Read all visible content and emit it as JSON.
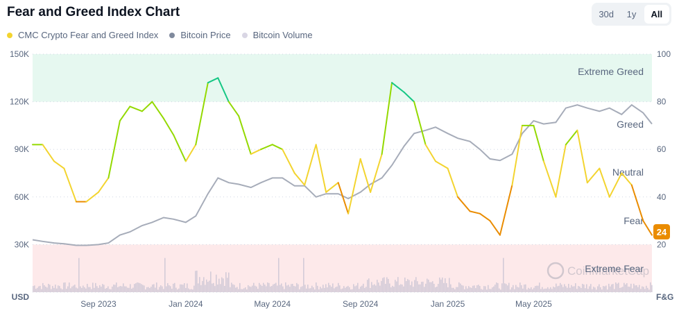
{
  "title": "Fear and Greed Index Chart",
  "legend": [
    {
      "label": "CMC Crypto Fear and Greed Index",
      "color": "#f3d42f"
    },
    {
      "label": "Bitcoin Price",
      "color": "#808a9d"
    },
    {
      "label": "Bitcoin Volume",
      "color": "#d9d6e4"
    }
  ],
  "range_buttons": [
    {
      "label": "30d",
      "active": false
    },
    {
      "label": "1y",
      "active": false
    },
    {
      "label": "All",
      "active": true
    }
  ],
  "watermark": "CoinMarketCap",
  "current_badge": "24",
  "chart_data": {
    "type": "line",
    "x_ticks": [
      "Sep 2023",
      "Jan 2024",
      "May 2024",
      "Sep 2024",
      "Jan 2025",
      "May 2025"
    ],
    "left_axis": {
      "label": "USD",
      "ticks": [
        "150K",
        "120K",
        "90K",
        "60K",
        "30K"
      ],
      "ylim": [
        0,
        150000
      ]
    },
    "right_axis": {
      "label": "F&G",
      "ticks": [
        "100",
        "80",
        "60",
        "40",
        "20"
      ],
      "ylim": [
        0,
        100
      ]
    },
    "zones": [
      "Extreme Greed",
      "Greed",
      "Neutral",
      "Fear",
      "Extreme Fear"
    ],
    "colors": {
      "extreme_greed": "#16c784",
      "greed": "#93d900",
      "neutral": "#f3d42f",
      "fear": "#ea8c00",
      "extreme_fear": "#ea3943",
      "price": "#a6acb9",
      "volume": "#d3cbd8",
      "greed_band": "#e6f8f0",
      "fear_band": "#fde9ea"
    },
    "grid": true,
    "x": [
      "2023-06-01",
      "2023-06-15",
      "2023-07-01",
      "2023-07-15",
      "2023-08-01",
      "2023-08-15",
      "2023-09-01",
      "2023-09-15",
      "2023-10-01",
      "2023-10-15",
      "2023-11-01",
      "2023-11-15",
      "2023-12-01",
      "2023-12-15",
      "2024-01-01",
      "2024-01-15",
      "2024-02-01",
      "2024-02-15",
      "2024-03-01",
      "2024-03-15",
      "2024-04-01",
      "2024-04-15",
      "2024-05-01",
      "2024-05-15",
      "2024-06-01",
      "2024-06-15",
      "2024-07-01",
      "2024-07-15",
      "2024-08-01",
      "2024-08-15",
      "2024-09-01",
      "2024-09-15",
      "2024-10-01",
      "2024-10-15",
      "2024-11-01",
      "2024-11-15",
      "2024-12-01",
      "2024-12-15",
      "2025-01-01",
      "2025-01-15",
      "2025-02-01",
      "2025-02-15",
      "2025-03-01",
      "2025-03-15",
      "2025-04-01",
      "2025-04-15",
      "2025-05-01",
      "2025-05-15",
      "2025-06-01",
      "2025-06-15",
      "2025-07-01",
      "2025-07-15",
      "2025-08-01",
      "2025-08-15",
      "2025-09-01",
      "2025-09-15",
      "2025-10-01",
      "2025-10-14"
    ],
    "series": [
      {
        "name": "CMC Crypto Fear and Greed Index",
        "axis": "right",
        "values": [
          62,
          62,
          55,
          52,
          38,
          38,
          42,
          48,
          72,
          78,
          76,
          80,
          73,
          66,
          55,
          62,
          88,
          90,
          80,
          74,
          58,
          60,
          62,
          60,
          50,
          45,
          62,
          42,
          46,
          33,
          56,
          42,
          58,
          88,
          84,
          80,
          62,
          55,
          52,
          40,
          34,
          33,
          30,
          24,
          45,
          70,
          70,
          55,
          40,
          62,
          68,
          46,
          52,
          40,
          50,
          45,
          30,
          24
        ]
      },
      {
        "name": "Bitcoin Price",
        "axis": "left",
        "values": [
          33000,
          32000,
          31000,
          30500,
          29500,
          29500,
          30000,
          31000,
          36000,
          38000,
          42000,
          44000,
          47000,
          46000,
          44000,
          48000,
          62000,
          72000,
          69000,
          68000,
          66000,
          69000,
          72000,
          72000,
          67000,
          67000,
          60000,
          62000,
          62000,
          59000,
          63000,
          68000,
          72000,
          80000,
          92000,
          100000,
          102000,
          104000,
          100000,
          97000,
          95000,
          90000,
          84000,
          83000,
          87000,
          100000,
          108000,
          106000,
          107000,
          116000,
          118000,
          116000,
          114000,
          116000,
          112000,
          118000,
          113000,
          106000
        ]
      }
    ]
  }
}
